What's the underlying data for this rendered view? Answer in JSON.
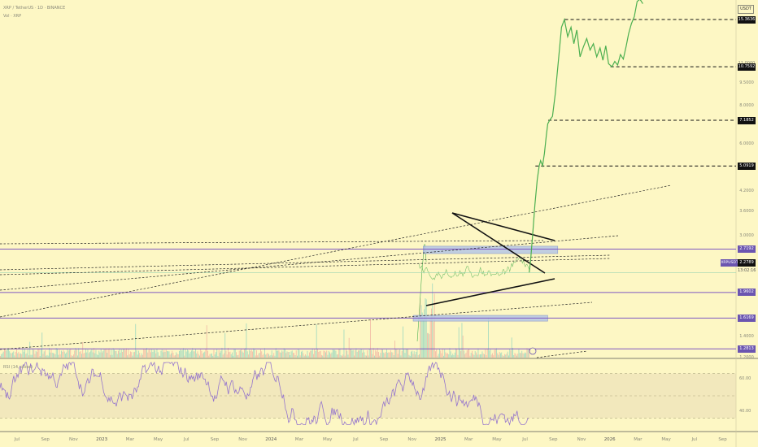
{
  "header": {
    "title": "XRP / TetherUS · 1D · BINANCE",
    "volume_label": "Vol · XRP",
    "rsi_label": "RSI (14, close)"
  },
  "price_axis": {
    "unit": "USDT",
    "ticks": [
      "11.0000",
      "9.5000",
      "8.0000",
      "6.0000",
      "4.2000",
      "3.6000",
      "3.0000",
      "1.4000",
      "1.2000"
    ],
    "tagged_levels": [
      {
        "text": "15.3636",
        "style": "dark"
      },
      {
        "text": "10.7592",
        "style": "dark"
      },
      {
        "text": "7.1852",
        "style": "dark"
      },
      {
        "text": "5.0919",
        "style": "dark"
      },
      {
        "text": "2.7192",
        "style": "purple"
      },
      {
        "text": "1.9602",
        "style": "purple"
      },
      {
        "text": "1.6169",
        "style": "purple"
      },
      {
        "text": "1.2813",
        "style": "purple"
      }
    ],
    "current": {
      "symbol": "XRPUSDT",
      "price": "2.2789",
      "countdown": "13:02:16"
    }
  },
  "time_axis": {
    "labels": [
      "Jul",
      "Sep",
      "Nov",
      "2023",
      "Mar",
      "May",
      "Jul",
      "Sep",
      "Nov",
      "2024",
      "Mar",
      "May",
      "Jul",
      "Sep",
      "Nov",
      "2025",
      "Mar",
      "May",
      "Jul",
      "Sep",
      "Nov",
      "2026",
      "Mar",
      "May",
      "Jul",
      "Sep"
    ]
  },
  "rsi_axis": {
    "ticks": [
      "60.00",
      "40.00"
    ]
  },
  "colors": {
    "background": "#fdf7c4",
    "price_line": "#4caf50",
    "level_line": "#7e57c2",
    "zone_fill": "#b6c7e6",
    "rsi_line": "#9575cd",
    "rsi_band": "#f2e8bc"
  },
  "chart_data": {
    "type": "line",
    "title": "XRP / TetherUS · 1D · BINANCE",
    "series": [
      {
        "name": "",
        "x": [
          "2025-07-12",
          "2025-07-15",
          "2025-07-19",
          "2025-07-24",
          "2025-07-29",
          "2025-08-02",
          "2025-08-05",
          "2025-08-09",
          "2025-08-13",
          "2025-08-17",
          "2025-08-20",
          "2025-08-24",
          "2025-08-30",
          "2025-09-05",
          "2025-09-12",
          "2025-09-18",
          "2025-09-24",
          "2025-10-01",
          "2025-10-08",
          "2025-10-14",
          "2025-10-20",
          "2025-10-27",
          "2025-11-03",
          "2025-11-10",
          "2025-11-17",
          "2025-11-24",
          "2025-12-01",
          "2025-12-08",
          "2025-12-14",
          "2025-12-20",
          "2025-12-26",
          "2026-01-02",
          "2026-01-08",
          "2026-01-14",
          "2026-01-20",
          "2026-01-26",
          "2026-02-01",
          "2026-02-06",
          "2026-02-12",
          "2026-02-18",
          "2026-02-24",
          "2026-03-02",
          "2026-03-08"
        ],
        "y": [
          2.28,
          2.5,
          3.0,
          3.8,
          4.6,
          5.1,
          5.3,
          5.1,
          5.6,
          6.4,
          7.0,
          7.185,
          7.4,
          8.8,
          11.5,
          14.5,
          15.36,
          13.5,
          14.5,
          12.8,
          14.2,
          11.6,
          12.5,
          13.3,
          12.2,
          12.8,
          11.6,
          12.4,
          11.3,
          12.6,
          11.0,
          10.76,
          11.2,
          10.9,
          11.8,
          11.4,
          12.6,
          13.8,
          14.9,
          15.7,
          17.6,
          17.9,
          17.3
        ]
      }
    ],
    "ylabel": "USDT",
    "ylim": [
      1.2,
      17.8
    ],
    "yscale": "log",
    "xlim": [
      "2022-06-25",
      "2026-09-20"
    ],
    "horizontal_levels": [
      15.3636,
      10.7592,
      7.1852,
      5.0919,
      2.7192,
      1.9602,
      1.6169,
      1.2813
    ],
    "grid": false
  }
}
